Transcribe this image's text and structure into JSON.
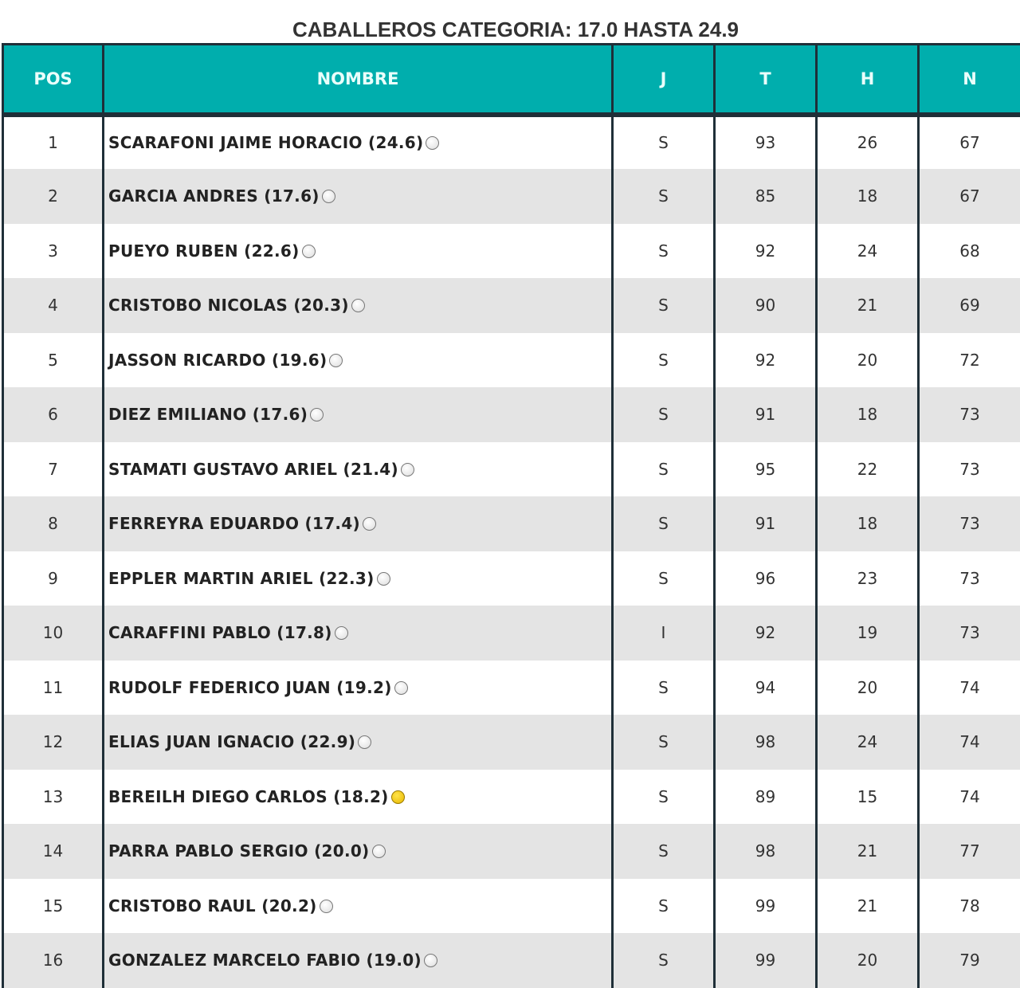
{
  "title": "CABALLEROS CATEGORIA: 17.0 HASTA 24.9",
  "columns": [
    "POS",
    "NOMBRE",
    "J",
    "T",
    "H",
    "N"
  ],
  "colors": {
    "header": "#00aead",
    "border": "#1f2f38",
    "alt_row": "#e4e4e4",
    "yellow_ball": "#f2c800"
  },
  "rows": [
    {
      "pos": "1",
      "name": "SCARAFONI JAIME HORACIO (24.6)",
      "ball": "white",
      "j": "S",
      "t": "93",
      "h": "26",
      "n": "67"
    },
    {
      "pos": "2",
      "name": "GARCIA ANDRES (17.6)",
      "ball": "white",
      "j": "S",
      "t": "85",
      "h": "18",
      "n": "67"
    },
    {
      "pos": "3",
      "name": "PUEYO RUBEN (22.6)",
      "ball": "white",
      "j": "S",
      "t": "92",
      "h": "24",
      "n": "68"
    },
    {
      "pos": "4",
      "name": "CRISTOBO NICOLAS (20.3)",
      "ball": "white",
      "j": "S",
      "t": "90",
      "h": "21",
      "n": "69"
    },
    {
      "pos": "5",
      "name": "JASSON RICARDO (19.6)",
      "ball": "white",
      "j": "S",
      "t": "92",
      "h": "20",
      "n": "72"
    },
    {
      "pos": "6",
      "name": "DIEZ EMILIANO (17.6)",
      "ball": "white",
      "j": "S",
      "t": "91",
      "h": "18",
      "n": "73"
    },
    {
      "pos": "7",
      "name": "STAMATI GUSTAVO ARIEL (21.4)",
      "ball": "white",
      "j": "S",
      "t": "95",
      "h": "22",
      "n": "73"
    },
    {
      "pos": "8",
      "name": "FERREYRA EDUARDO (17.4)",
      "ball": "white",
      "j": "S",
      "t": "91",
      "h": "18",
      "n": "73"
    },
    {
      "pos": "9",
      "name": "EPPLER MARTIN ARIEL (22.3)",
      "ball": "white",
      "j": "S",
      "t": "96",
      "h": "23",
      "n": "73"
    },
    {
      "pos": "10",
      "name": "CARAFFINI PABLO (17.8)",
      "ball": "white",
      "j": "I",
      "t": "92",
      "h": "19",
      "n": "73"
    },
    {
      "pos": "11",
      "name": "RUDOLF FEDERICO JUAN (19.2)",
      "ball": "white",
      "j": "S",
      "t": "94",
      "h": "20",
      "n": "74"
    },
    {
      "pos": "12",
      "name": "ELIAS JUAN IGNACIO (22.9)",
      "ball": "white",
      "j": "S",
      "t": "98",
      "h": "24",
      "n": "74"
    },
    {
      "pos": "13",
      "name": "BEREILH DIEGO CARLOS (18.2)",
      "ball": "yellow",
      "j": "S",
      "t": "89",
      "h": "15",
      "n": "74"
    },
    {
      "pos": "14",
      "name": "PARRA PABLO SERGIO (20.0)",
      "ball": "white",
      "j": "S",
      "t": "98",
      "h": "21",
      "n": "77"
    },
    {
      "pos": "15",
      "name": "CRISTOBO RAUL (20.2)",
      "ball": "white",
      "j": "S",
      "t": "99",
      "h": "21",
      "n": "78"
    },
    {
      "pos": "16",
      "name": "GONZALEZ MARCELO FABIO (19.0)",
      "ball": "white",
      "j": "S",
      "t": "99",
      "h": "20",
      "n": "79"
    }
  ]
}
